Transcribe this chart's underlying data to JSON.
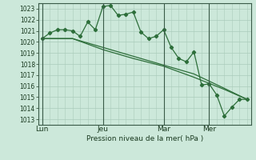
{
  "bg_color": "#cce8da",
  "grid_color": "#aaccbb",
  "line_color": "#2d6e3a",
  "marker_color": "#2d6e3a",
  "xlabel": "Pression niveau de la mer( hPa )",
  "ylim": [
    1012.5,
    1023.5
  ],
  "yticks": [
    1013,
    1014,
    1015,
    1016,
    1017,
    1018,
    1019,
    1020,
    1021,
    1022,
    1023
  ],
  "day_labels": [
    "Lun",
    "Jeu",
    "Mar",
    "Mer"
  ],
  "day_positions": [
    0,
    8,
    16,
    22
  ],
  "series1_x": [
    0,
    1,
    2,
    3,
    4,
    5,
    6,
    7,
    8,
    9,
    10,
    11,
    12,
    13,
    14,
    15,
    16,
    17,
    18,
    19,
    20,
    21,
    22,
    23,
    24,
    25,
    26,
    27
  ],
  "series1_y": [
    1020.3,
    1020.8,
    1021.1,
    1021.1,
    1021.0,
    1020.5,
    1021.8,
    1021.1,
    1023.2,
    1023.3,
    1022.4,
    1022.5,
    1022.7,
    1020.9,
    1020.3,
    1020.5,
    1021.1,
    1019.5,
    1018.5,
    1018.2,
    1019.1,
    1016.1,
    1016.2,
    1015.2,
    1013.3,
    1014.1,
    1014.8,
    1014.8
  ],
  "series2_x": [
    0,
    4,
    8,
    12,
    16,
    20,
    24,
    27
  ],
  "series2_y": [
    1020.3,
    1020.3,
    1019.5,
    1018.7,
    1017.9,
    1017.1,
    1015.8,
    1014.8
  ],
  "series3_x": [
    0,
    4,
    8,
    12,
    16,
    20,
    24,
    27
  ],
  "series3_y": [
    1020.3,
    1020.3,
    1019.3,
    1018.5,
    1017.8,
    1016.8,
    1015.7,
    1014.8
  ]
}
